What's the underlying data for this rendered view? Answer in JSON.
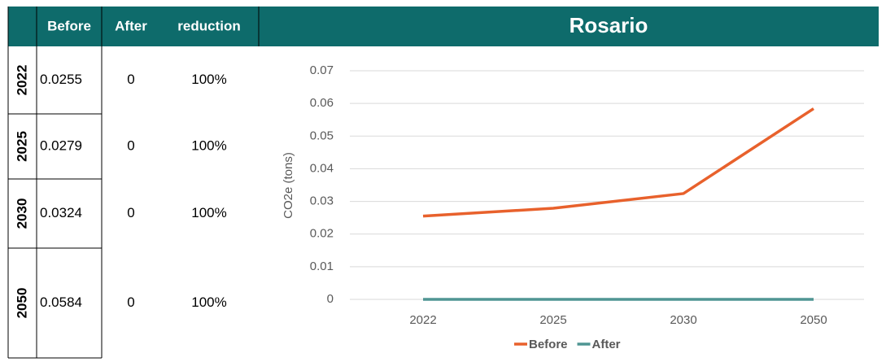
{
  "table": {
    "columns": [
      "Before",
      "After",
      "reduction"
    ],
    "rows": [
      {
        "label": "2022",
        "cells": [
          "0.0255",
          "0",
          "100%"
        ]
      },
      {
        "label": "2025",
        "cells": [
          "0.0279",
          "0",
          "100%"
        ]
      },
      {
        "label": "2030",
        "cells": [
          "0.0324",
          "0",
          "100%"
        ]
      },
      {
        "label": "2050",
        "cells": [
          "0.0584",
          "0",
          "100%"
        ]
      }
    ]
  },
  "chart_data": {
    "type": "line",
    "title": "Rosario",
    "y_label": "CO2e (tons)",
    "categories": [
      "2022",
      "2025",
      "2030",
      "2050"
    ],
    "series": [
      {
        "name": "Before",
        "color": "#e8612c",
        "values": [
          0.0255,
          0.0279,
          0.0324,
          0.0584
        ]
      },
      {
        "name": "After",
        "color": "#4f9593",
        "values": [
          0,
          0,
          0,
          0
        ]
      }
    ],
    "ylim": [
      0,
      0.07
    ],
    "yticks": [
      0,
      0.01,
      0.02,
      0.03,
      0.04,
      0.05,
      0.06,
      0.07
    ],
    "grid": true,
    "legend": "bottom"
  }
}
